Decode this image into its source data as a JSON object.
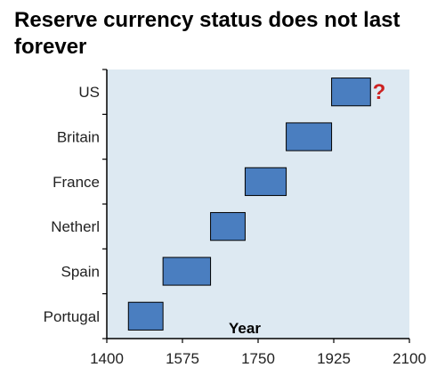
{
  "chart_data": {
    "type": "bar",
    "subtype": "floating-range",
    "orientation": "horizontal",
    "title": "Reserve currency status does not last forever",
    "xlabel": "Year",
    "ylabel": "",
    "xlim": [
      1400,
      2100
    ],
    "xticks": [
      1400,
      1575,
      1750,
      1925,
      2100
    ],
    "categories": [
      "Portugal",
      "Spain",
      "Netherl",
      "France",
      "Britain",
      "US"
    ],
    "ranges": [
      {
        "category": "Portugal",
        "start": 1450,
        "end": 1530
      },
      {
        "category": "Spain",
        "start": 1530,
        "end": 1640
      },
      {
        "category": "Netherl",
        "start": 1640,
        "end": 1720
      },
      {
        "category": "France",
        "start": 1720,
        "end": 1815
      },
      {
        "category": "Britain",
        "start": 1815,
        "end": 1920
      },
      {
        "category": "US",
        "start": 1920,
        "end": 2010
      }
    ],
    "annotations": [
      {
        "text": "?",
        "category": "US",
        "x": 2030,
        "color": "#cc2222"
      }
    ],
    "grid": false,
    "legend": "none",
    "colors": {
      "bar_fill": "#4a7ec0",
      "bar_stroke": "#000000",
      "plot_background": "#dde9f2",
      "axis": "#000000"
    }
  }
}
